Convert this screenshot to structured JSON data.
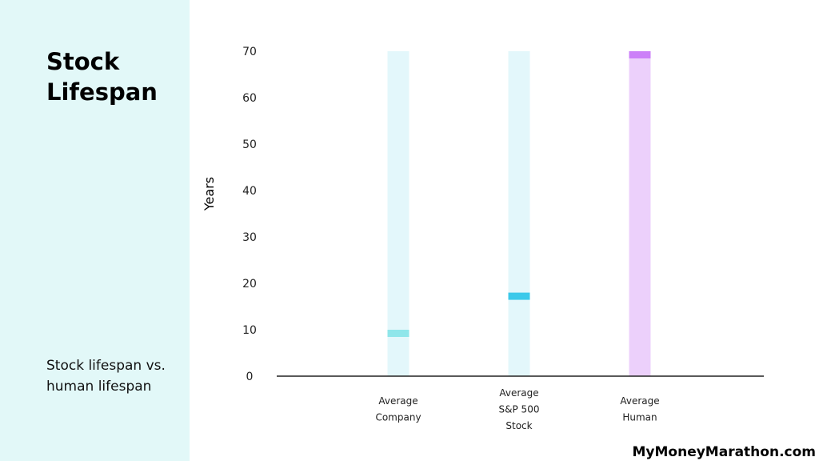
{
  "page": {
    "title": "Stock Lifespan",
    "subtitle": "Stock lifespan vs. human lifespan",
    "watermark": "MyMoneyMarathon.com"
  },
  "chart_data": {
    "type": "bar",
    "ylabel": "Years",
    "ylim": [
      0,
      70
    ],
    "yticks": [
      0,
      10,
      20,
      30,
      40,
      50,
      60,
      70
    ],
    "grid": false,
    "legend": "none",
    "categories": [
      {
        "lines": [
          "Average",
          "Company"
        ],
        "value": 10,
        "track_color": "#e3f7fb",
        "marker_color": "#8fe6ea",
        "fill": false
      },
      {
        "lines": [
          "Average",
          "S&P 500",
          "Stock"
        ],
        "value": 18,
        "track_color": "#e3f7fb",
        "marker_color": "#3cc9ea",
        "fill": false
      },
      {
        "lines": [
          "Average",
          "Human"
        ],
        "value": 70,
        "track_color": "#ecd0fb",
        "marker_color": "#cc80f8",
        "fill": true
      }
    ]
  }
}
